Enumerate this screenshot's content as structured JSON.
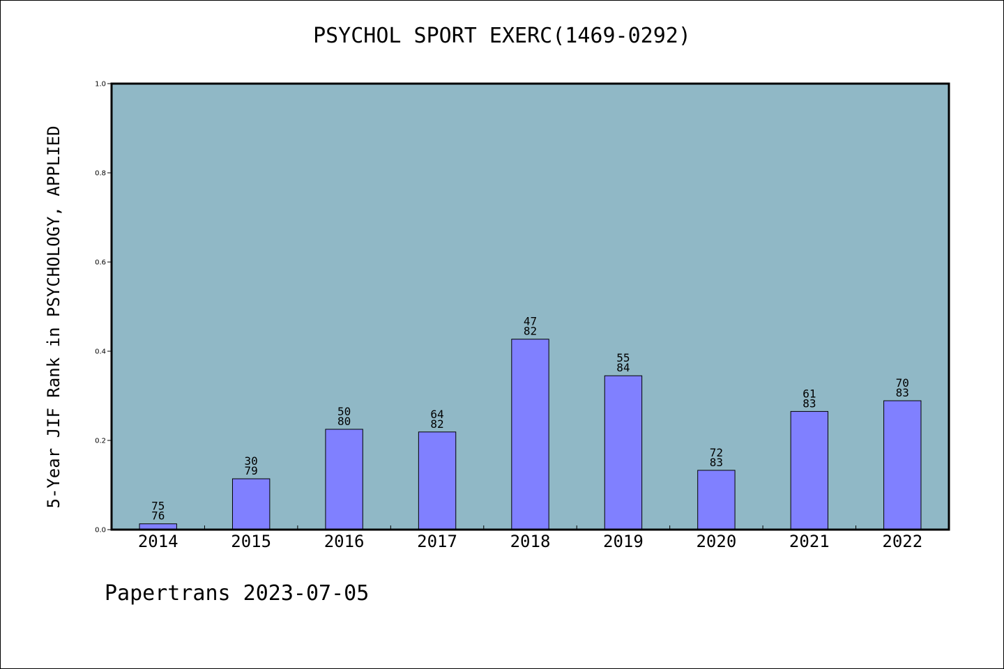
{
  "chart_data": {
    "type": "bar",
    "title": "PSYCHOL SPORT EXERC(1469-0292)",
    "xlabel": "",
    "ylabel": "5-Year JIF Rank in PSYCHOLOGY, APPLIED",
    "ylim": [
      0,
      1.0
    ],
    "yticks": [
      "0.0",
      "0.2",
      "0.4",
      "0.6",
      "0.8",
      "1.0"
    ],
    "grid": false,
    "categories": [
      "2014",
      "2015",
      "2016",
      "2017",
      "2018",
      "2019",
      "2020",
      "2021",
      "2022"
    ],
    "values": [
      0.013,
      0.114,
      0.225,
      0.219,
      0.427,
      0.345,
      0.133,
      0.265,
      0.289
    ],
    "labels_top": [
      "75",
      "30",
      "50",
      "64",
      "47",
      "55",
      "72",
      "61",
      "70"
    ],
    "labels_bottom": [
      "76",
      "79",
      "80",
      "82",
      "82",
      "84",
      "83",
      "83",
      "83"
    ],
    "colors": {
      "plot_background": "#90b8c6",
      "bar": "#8080ff",
      "bar_edge": "#000000"
    }
  },
  "footer": "Papertrans 2023-07-05"
}
